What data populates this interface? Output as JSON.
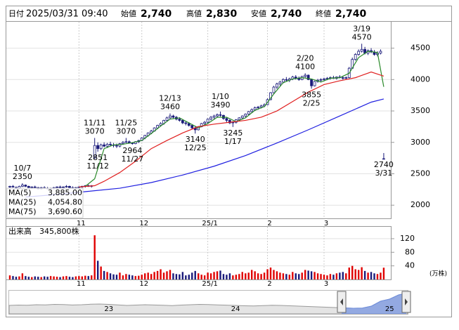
{
  "chart_data": {
    "type": "candlestick",
    "header": {
      "date_label": "日付",
      "date": "2025/03/31 09:40",
      "items": [
        {
          "label": "始値",
          "value": "2,740",
          "color": "#000000"
        },
        {
          "label": "高値",
          "value": "2,830",
          "color": "#e00000"
        },
        {
          "label": "安値",
          "value": "2,740",
          "color": "#008000"
        },
        {
          "label": "終値",
          "value": "2,740",
          "color": "#000000"
        }
      ]
    },
    "up_color": "#ffffff",
    "down_color": "#1a1a7a",
    "candle_stroke": "#1a1a7a",
    "ylim": [
      1790,
      4920
    ],
    "yticks": [
      2000,
      2500,
      3000,
      3500,
      4000,
      4500
    ],
    "grid": true,
    "categories": [
      null,
      null,
      null,
      null,
      null,
      null,
      null,
      null,
      null,
      null,
      null,
      null,
      null,
      null,
      null,
      null,
      null,
      null,
      null,
      null,
      null,
      null,
      "11",
      null,
      null,
      null,
      null,
      null,
      null,
      null,
      null,
      null,
      null,
      null,
      null,
      null,
      null,
      null,
      null,
      null,
      null,
      null,
      "12",
      null,
      null,
      null,
      null,
      null,
      null,
      null,
      null,
      null,
      null,
      null,
      null,
      null,
      null,
      null,
      null,
      null,
      null,
      null,
      null,
      "25/1",
      null,
      null,
      null,
      null,
      null,
      null,
      null,
      null,
      null,
      null,
      null,
      null,
      null,
      null,
      null,
      null,
      null,
      null,
      "2",
      null,
      null,
      null,
      null,
      null,
      null,
      null,
      null,
      null,
      null,
      null,
      null,
      null,
      null,
      null,
      null,
      null,
      "3",
      null,
      null,
      null,
      null,
      null,
      null,
      null,
      null,
      null,
      null,
      null,
      null,
      null,
      null,
      null,
      null,
      null,
      null,
      null
    ],
    "ohlc": [
      [
        2290,
        2310,
        2270,
        2300
      ],
      [
        2300,
        2320,
        2280,
        2290
      ],
      [
        2280,
        2300,
        2260,
        2270
      ],
      [
        2270,
        2310,
        2260,
        2300
      ],
      [
        2300,
        2350,
        2290,
        2320
      ],
      [
        2320,
        2330,
        2290,
        2300
      ],
      [
        2300,
        2310,
        2270,
        2280
      ],
      [
        2280,
        2300,
        2260,
        2290
      ],
      [
        2290,
        2310,
        2270,
        2280
      ],
      [
        2280,
        2290,
        2250,
        2260
      ],
      [
        2260,
        2290,
        2250,
        2280
      ],
      [
        2280,
        2300,
        2260,
        2270
      ],
      [
        2270,
        2290,
        2250,
        2260
      ],
      [
        2260,
        2280,
        2240,
        2270
      ],
      [
        2270,
        2290,
        2250,
        2280
      ],
      [
        2280,
        2300,
        2260,
        2290
      ],
      [
        2290,
        2310,
        2270,
        2280
      ],
      [
        2280,
        2300,
        2260,
        2290
      ],
      [
        2290,
        2320,
        2280,
        2300
      ],
      [
        2300,
        2310,
        2270,
        2280
      ],
      [
        2280,
        2300,
        2260,
        2270
      ],
      [
        2270,
        2290,
        2250,
        2280
      ],
      [
        2280,
        2300,
        2260,
        2290
      ],
      [
        2290,
        2310,
        2270,
        2300
      ],
      [
        2300,
        2320,
        2280,
        2310
      ],
      [
        2310,
        2330,
        2290,
        2300
      ],
      [
        2300,
        2320,
        2280,
        2310
      ],
      [
        2750,
        3070,
        2740,
        2950
      ],
      [
        2950,
        3000,
        2851,
        2900
      ],
      [
        2900,
        2980,
        2880,
        2960
      ],
      [
        2960,
        3000,
        2920,
        2940
      ],
      [
        2940,
        2990,
        2910,
        2970
      ],
      [
        2970,
        3010,
        2940,
        2960
      ],
      [
        2960,
        2990,
        2920,
        2950
      ],
      [
        2950,
        2980,
        2910,
        2940
      ],
      [
        2940,
        2990,
        2920,
        2980
      ],
      [
        2980,
        3020,
        2960,
        3000
      ],
      [
        3000,
        3070,
        2990,
        3010
      ],
      [
        3010,
        3030,
        2980,
        2990
      ],
      [
        2990,
        3000,
        2964,
        2980
      ],
      [
        2980,
        3020,
        2970,
        3010
      ],
      [
        3010,
        3040,
        2990,
        3030
      ],
      [
        3030,
        3080,
        3020,
        3070
      ],
      [
        3070,
        3120,
        3050,
        3110
      ],
      [
        3110,
        3160,
        3090,
        3150
      ],
      [
        3150,
        3200,
        3130,
        3180
      ],
      [
        3180,
        3240,
        3170,
        3230
      ],
      [
        3230,
        3280,
        3210,
        3270
      ],
      [
        3270,
        3320,
        3250,
        3300
      ],
      [
        3300,
        3360,
        3280,
        3350
      ],
      [
        3350,
        3410,
        3330,
        3390
      ],
      [
        3390,
        3460,
        3370,
        3420
      ],
      [
        3420,
        3440,
        3380,
        3400
      ],
      [
        3400,
        3420,
        3350,
        3370
      ],
      [
        3370,
        3400,
        3330,
        3350
      ],
      [
        3350,
        3370,
        3290,
        3310
      ],
      [
        3310,
        3340,
        3270,
        3300
      ],
      [
        3300,
        3320,
        3250,
        3270
      ],
      [
        3270,
        3290,
        3210,
        3230
      ],
      [
        3230,
        3250,
        3140,
        3200
      ],
      [
        3200,
        3260,
        3190,
        3250
      ],
      [
        3250,
        3310,
        3240,
        3300
      ],
      [
        3300,
        3340,
        3280,
        3320
      ],
      [
        3320,
        3380,
        3300,
        3370
      ],
      [
        3370,
        3420,
        3350,
        3400
      ],
      [
        3400,
        3440,
        3370,
        3420
      ],
      [
        3420,
        3460,
        3390,
        3440
      ],
      [
        3440,
        3490,
        3410,
        3430
      ],
      [
        3430,
        3440,
        3360,
        3380
      ],
      [
        3380,
        3400,
        3320,
        3350
      ],
      [
        3350,
        3370,
        3290,
        3310
      ],
      [
        3310,
        3340,
        3245,
        3320
      ],
      [
        3320,
        3370,
        3300,
        3360
      ],
      [
        3360,
        3400,
        3340,
        3390
      ],
      [
        3390,
        3430,
        3370,
        3420
      ],
      [
        3420,
        3460,
        3400,
        3450
      ],
      [
        3450,
        3500,
        3430,
        3490
      ],
      [
        3490,
        3540,
        3470,
        3520
      ],
      [
        3520,
        3570,
        3500,
        3550
      ],
      [
        3550,
        3580,
        3520,
        3560
      ],
      [
        3560,
        3600,
        3540,
        3580
      ],
      [
        3580,
        3620,
        3560,
        3600
      ],
      [
        3600,
        3700,
        3590,
        3680
      ],
      [
        3680,
        3800,
        3670,
        3790
      ],
      [
        3790,
        3900,
        3780,
        3880
      ],
      [
        3880,
        3950,
        3850,
        3930
      ],
      [
        3930,
        3980,
        3900,
        3960
      ],
      [
        3960,
        4020,
        3940,
        4000
      ],
      [
        4000,
        4040,
        3970,
        3990
      ],
      [
        3990,
        4030,
        3960,
        4010
      ],
      [
        4010,
        4060,
        3990,
        4040
      ],
      [
        4040,
        4070,
        4000,
        4020
      ],
      [
        4020,
        4050,
        3980,
        4000
      ],
      [
        4000,
        4060,
        3990,
        4050
      ],
      [
        4050,
        4100,
        4030,
        4070
      ],
      [
        4070,
        4080,
        3990,
        4000
      ],
      [
        4000,
        4010,
        3855,
        3900
      ],
      [
        3900,
        3980,
        3890,
        3970
      ],
      [
        3970,
        4010,
        3950,
        3990
      ],
      [
        3990,
        4020,
        3960,
        4000
      ],
      [
        4000,
        4030,
        3980,
        4010
      ],
      [
        4010,
        4040,
        3990,
        4020
      ],
      [
        4020,
        4050,
        4000,
        4030
      ],
      [
        4030,
        4060,
        4010,
        4020
      ],
      [
        4020,
        4050,
        4000,
        4040
      ],
      [
        4040,
        4070,
        4020,
        4030
      ],
      [
        4030,
        4060,
        4000,
        4020
      ],
      [
        4020,
        4050,
        4000,
        4030
      ],
      [
        4030,
        4200,
        4020,
        4180
      ],
      [
        4180,
        4350,
        4170,
        4320
      ],
      [
        4320,
        4420,
        4300,
        4400
      ],
      [
        4400,
        4480,
        4380,
        4450
      ],
      [
        4450,
        4570,
        4430,
        4480
      ],
      [
        4480,
        4520,
        4400,
        4420
      ],
      [
        4420,
        4480,
        4390,
        4460
      ],
      [
        4460,
        4500,
        4420,
        4440
      ],
      [
        4440,
        4470,
        4380,
        4400
      ],
      [
        4400,
        4450,
        4370,
        4420
      ],
      [
        4420,
        4480,
        4400,
        4450
      ],
      [
        2740,
        2830,
        2740,
        2740
      ]
    ],
    "annotations": [
      {
        "date": "10/7",
        "value": 2350
      },
      {
        "date": "11/11",
        "value": 3070
      },
      {
        "date": "11/12",
        "value": 2851
      },
      {
        "date": "11/25",
        "value": 3070
      },
      {
        "date": "11/27",
        "value": 2964
      },
      {
        "date": "12/13",
        "value": 3460
      },
      {
        "date": "12/25",
        "value": 3140
      },
      {
        "date": "1/10",
        "value": 3490
      },
      {
        "date": "1/17",
        "value": 3245
      },
      {
        "date": "2/20",
        "value": 4100
      },
      {
        "date": "2/25",
        "value": 3855
      },
      {
        "date": "3/19",
        "value": 4570
      },
      {
        "date": "3/31",
        "value": 2740
      }
    ],
    "series": [
      {
        "name": "MA(5)",
        "color": "#2a8a2a",
        "value_label": "3,885.00",
        "x": [
          24,
          27,
          30,
          33,
          36,
          39,
          42,
          45,
          48,
          51,
          54,
          57,
          60,
          63,
          66,
          69,
          72,
          75,
          78,
          81,
          84,
          87,
          90,
          93,
          96,
          99,
          102,
          105,
          108,
          111,
          114,
          117,
          119
        ],
        "values": [
          2300,
          2420,
          2900,
          2960,
          2970,
          2995,
          3030,
          3140,
          3260,
          3370,
          3390,
          3310,
          3230,
          3300,
          3400,
          3400,
          3330,
          3390,
          3510,
          3570,
          3770,
          3950,
          4010,
          4030,
          4010,
          3960,
          4020,
          4030,
          4100,
          4350,
          4450,
          4430,
          3885
        ]
      },
      {
        "name": "MA(25)",
        "color": "#e02020",
        "value_label": "4,054.80",
        "x": [
          22,
          27,
          30,
          35,
          40,
          45,
          50,
          55,
          60,
          65,
          70,
          75,
          80,
          85,
          90,
          95,
          100,
          105,
          110,
          115,
          119
        ],
        "values": [
          2290,
          2310,
          2380,
          2520,
          2700,
          2900,
          3030,
          3150,
          3250,
          3290,
          3320,
          3350,
          3400,
          3500,
          3650,
          3800,
          3920,
          3980,
          4030,
          4120,
          4054.8
        ]
      },
      {
        "name": "MA(75)",
        "color": "#2020e0",
        "value_label": "3,690.60",
        "x": [
          5,
          15,
          25,
          35,
          45,
          55,
          65,
          75,
          85,
          95,
          105,
          115,
          119
        ],
        "values": [
          2130,
          2170,
          2220,
          2270,
          2360,
          2480,
          2620,
          2790,
          2990,
          3200,
          3420,
          3640,
          3690.6
        ]
      }
    ],
    "volume": {
      "title": "出来高",
      "label": "345,800株",
      "unit": "(万株)",
      "ylim": [
        0,
        155
      ],
      "yticks": [
        40,
        80,
        120
      ],
      "up_color": "#e00000",
      "down_color": "#1a1a7a",
      "values": [
        12,
        10,
        8,
        9,
        18,
        10,
        8,
        7,
        9,
        8,
        7,
        9,
        8,
        10,
        9,
        8,
        7,
        9,
        10,
        8,
        7,
        9,
        10,
        9,
        11,
        10,
        12,
        130,
        55,
        38,
        25,
        22,
        18,
        15,
        14,
        20,
        12,
        16,
        14,
        12,
        10,
        11,
        14,
        18,
        20,
        16,
        22,
        25,
        30,
        20,
        24,
        28,
        18,
        16,
        15,
        22,
        12,
        14,
        20,
        25,
        18,
        14,
        12,
        20,
        18,
        22,
        24,
        26,
        16,
        14,
        18,
        12,
        14,
        16,
        22,
        18,
        20,
        28,
        24,
        18,
        16,
        20,
        30,
        35,
        28,
        24,
        20,
        18,
        16,
        14,
        22,
        18,
        16,
        20,
        28,
        26,
        24,
        22,
        18,
        16,
        14,
        12,
        16,
        14,
        18,
        20,
        22,
        18,
        35,
        40,
        30,
        28,
        36,
        25,
        20,
        22,
        18,
        16,
        20,
        34.58
      ]
    },
    "navigator": {
      "ylim": [
        1500,
        4800
      ],
      "color": "#9a9a9a",
      "selected_color": "#7090e0",
      "labels": [
        null,
        null,
        null,
        null,
        null,
        null,
        null,
        null,
        null,
        null,
        null,
        "23",
        null,
        null,
        null,
        null,
        null,
        null,
        null,
        null,
        null,
        null,
        null,
        null,
        null,
        "24",
        null,
        null,
        null,
        null,
        null,
        null,
        null,
        null,
        null,
        null,
        null,
        null,
        null,
        null,
        null,
        null,
        "25",
        null,
        null
      ],
      "values": [
        2700,
        2750,
        2720,
        2800,
        2780,
        2850,
        2820,
        2760,
        2800,
        2870,
        2900,
        2850,
        2780,
        2700,
        2750,
        2800,
        2760,
        2720,
        2680,
        2750,
        2800,
        2850,
        2820,
        2780,
        2740,
        2700,
        2650,
        2620,
        2680,
        2720,
        2700,
        2650,
        2600,
        2550,
        2500,
        2450,
        2400,
        2350,
        2300,
        2330,
        2600,
        3300,
        3600,
        4200,
        4500
      ]
    }
  }
}
